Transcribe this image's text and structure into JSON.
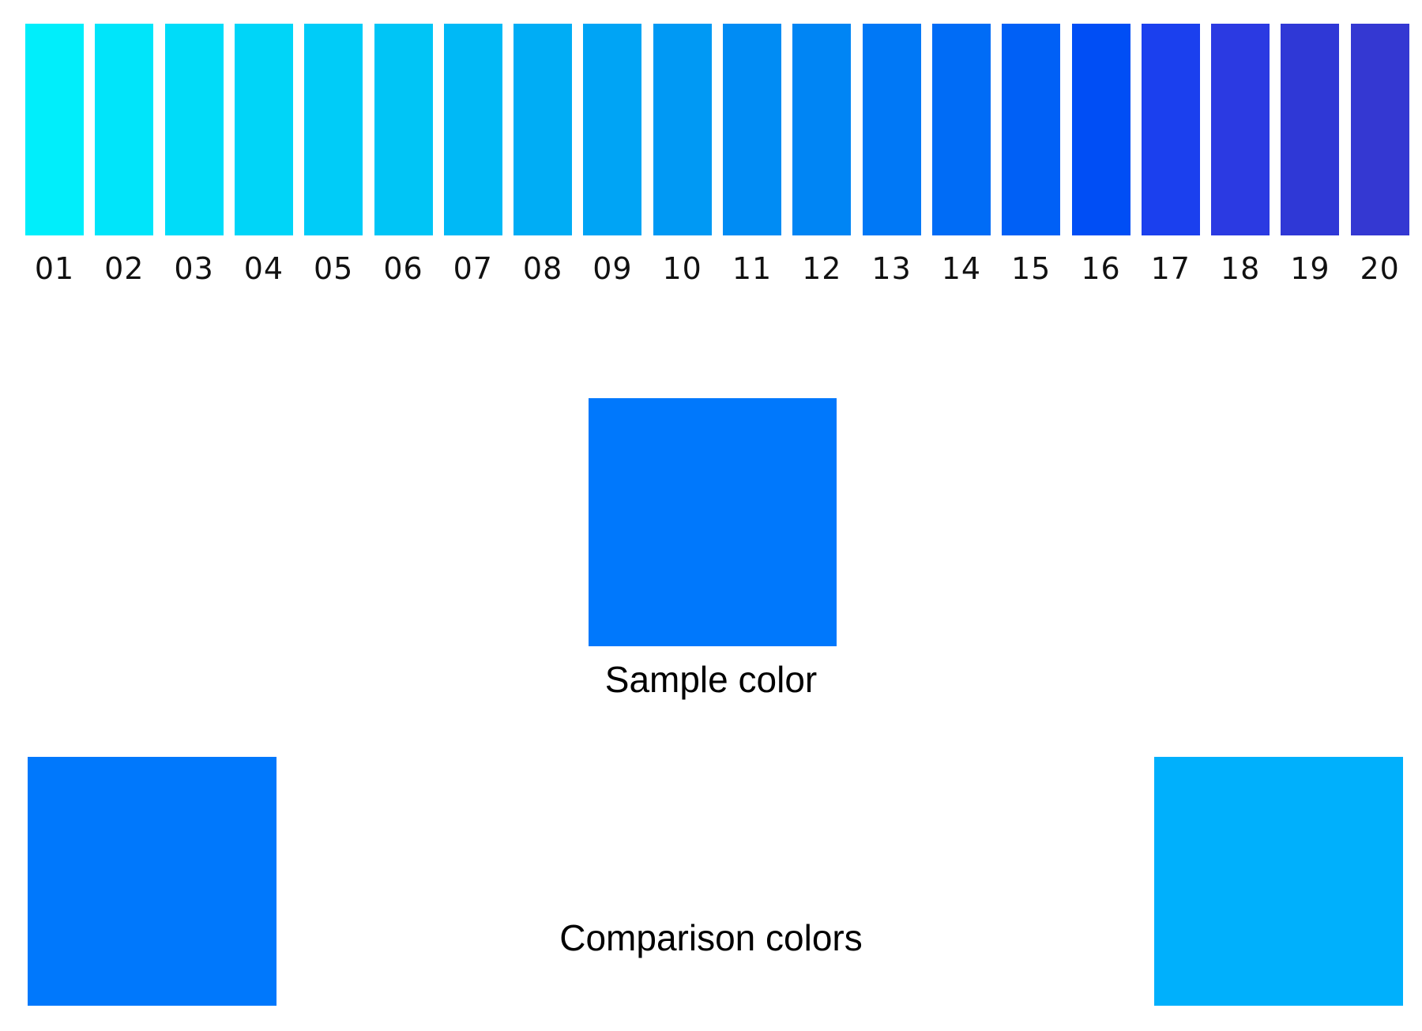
{
  "swatches": [
    {
      "label": "01",
      "color": "#00EEFB"
    },
    {
      "label": "02",
      "color": "#00E5FA"
    },
    {
      "label": "03",
      "color": "#00DCF9"
    },
    {
      "label": "04",
      "color": "#00D5F8"
    },
    {
      "label": "05",
      "color": "#00CCF8"
    },
    {
      "label": "06",
      "color": "#00C5F6"
    },
    {
      "label": "07",
      "color": "#00B9F6"
    },
    {
      "label": "08",
      "color": "#00ADF5"
    },
    {
      "label": "09",
      "color": "#00A4F5"
    },
    {
      "label": "10",
      "color": "#0099F4"
    },
    {
      "label": "11",
      "color": "#008CF4"
    },
    {
      "label": "12",
      "color": "#0085F4"
    },
    {
      "label": "13",
      "color": "#0078F6"
    },
    {
      "label": "14",
      "color": "#006CF6"
    },
    {
      "label": "15",
      "color": "#0060F6"
    },
    {
      "label": "16",
      "color": "#004EF5"
    },
    {
      "label": "17",
      "color": "#1B40EE"
    },
    {
      "label": "18",
      "color": "#2B3AE2"
    },
    {
      "label": "19",
      "color": "#2F38D6"
    },
    {
      "label": "20",
      "color": "#3438D2"
    }
  ],
  "sample": {
    "label": "Sample color",
    "color": "#0078FC"
  },
  "comparison": {
    "label": "Comparison colors",
    "left_color": "#0078FC",
    "right_color": "#00B0FC"
  }
}
